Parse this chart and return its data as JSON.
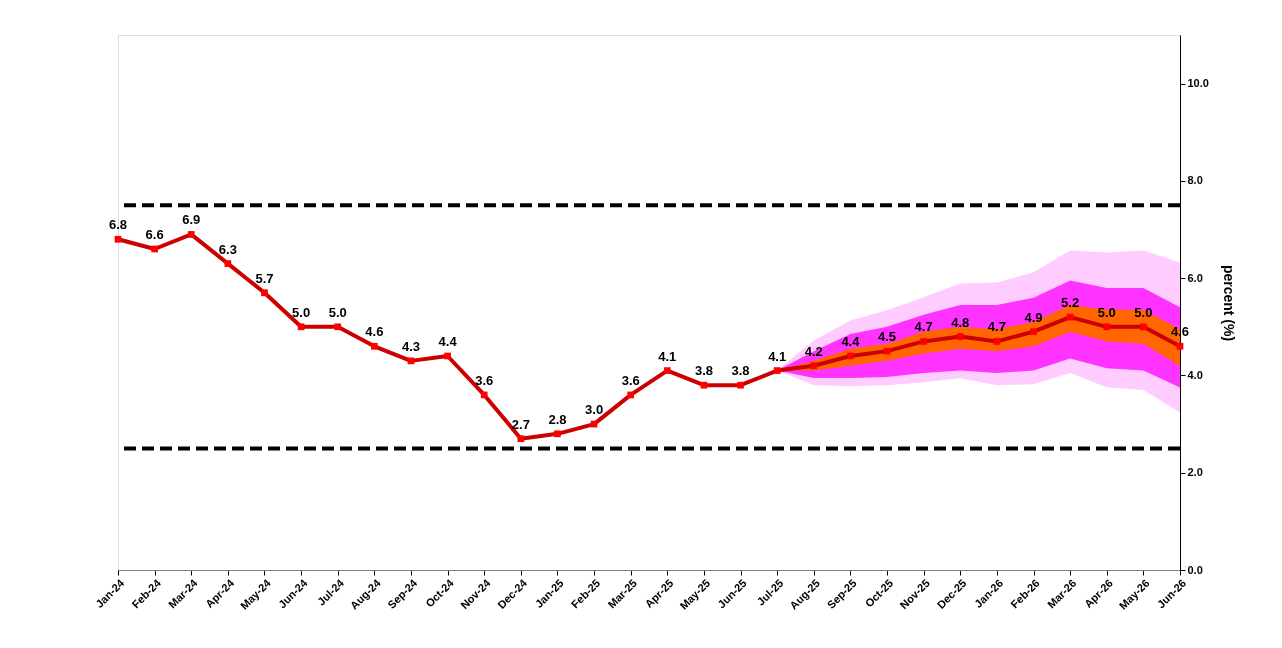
{
  "chart_data": {
    "type": "line",
    "categories": [
      "Jan-24",
      "Feb-24",
      "Mar-24",
      "Apr-24",
      "May-24",
      "Jun-24",
      "Jul-24",
      "Aug-24",
      "Sep-24",
      "Oct-24",
      "Nov-24",
      "Dec-24",
      "Jan-25",
      "Feb-25",
      "Mar-25",
      "Apr-25",
      "May-25",
      "Jun-25",
      "Jul-25",
      "Aug-25",
      "Sep-25",
      "Oct-25",
      "Nov-25",
      "Dec-25",
      "Jan-26",
      "Feb-26",
      "Mar-26",
      "Apr-26",
      "May-26",
      "Jun-26"
    ],
    "ylabel": "percent (%)",
    "ylim": [
      0,
      11
    ],
    "yticks": [
      {
        "value": 0,
        "label": "0.0"
      },
      {
        "value": 2,
        "label": "2.0"
      },
      {
        "value": 4,
        "label": "4.0"
      },
      {
        "value": 6,
        "label": "6.0"
      },
      {
        "value": 8,
        "label": "8.0"
      },
      {
        "value": 10,
        "label": "10.0"
      }
    ],
    "series": [
      {
        "color": "#cc0000",
        "values": [
          6.8,
          6.6,
          6.9,
          6.3,
          5.7,
          5.0,
          5.0,
          4.6,
          4.3,
          4.4,
          3.6,
          2.7,
          2.8,
          3.0,
          3.6,
          4.1,
          3.8,
          3.8,
          4.1,
          4.2,
          4.4,
          4.5,
          4.7,
          4.8,
          4.7,
          4.9,
          5.2,
          5.0,
          5.0,
          4.6
        ],
        "value_labels": [
          "6.8",
          "6.6",
          "6.9",
          "6.3",
          "5.7",
          "5.0",
          "5.0",
          "4.6",
          "4.3",
          "4.4",
          "3.6",
          "2.7",
          "2.8",
          "3.0",
          "3.6",
          "4.1",
          "3.8",
          "3.8",
          "4.1",
          "4.2",
          "4.4",
          "4.5",
          "4.7",
          "4.8",
          "4.7",
          "4.9",
          "5.2",
          "5.0",
          "5.0",
          "4.6"
        ]
      },
      {
        "color": "#ffccff",
        "values": [
          null,
          null,
          null,
          null,
          null,
          null,
          null,
          null,
          null,
          null,
          null,
          null,
          null,
          null,
          null,
          null,
          null,
          null,
          null,
          null,
          null,
          null,
          null,
          null,
          null,
          null,
          null,
          null,
          null,
          null
        ],
        "lower": [
          null,
          null,
          null,
          null,
          null,
          null,
          null,
          null,
          null,
          null,
          null,
          null,
          null,
          null,
          null,
          null,
          null,
          null,
          4.1,
          3.8,
          3.78,
          3.8,
          3.86,
          3.94,
          3.8,
          3.82,
          4.05,
          3.76,
          3.7,
          3.24
        ],
        "upper": [
          null,
          null,
          null,
          null,
          null,
          null,
          null,
          null,
          null,
          null,
          null,
          null,
          null,
          null,
          null,
          null,
          null,
          null,
          4.1,
          4.72,
          5.13,
          5.34,
          5.61,
          5.89,
          5.91,
          6.12,
          6.57,
          6.53,
          6.57,
          6.32
        ]
      },
      {
        "color": "#ff33ff",
        "values": [
          null,
          null,
          null,
          null,
          null,
          null,
          null,
          null,
          null,
          null,
          null,
          null,
          null,
          null,
          null,
          null,
          null,
          null,
          null,
          null,
          null,
          null,
          null,
          null,
          null,
          null,
          null,
          null,
          null,
          null
        ],
        "lower": [
          null,
          null,
          null,
          null,
          null,
          null,
          null,
          null,
          null,
          null,
          null,
          null,
          null,
          null,
          null,
          null,
          null,
          null,
          4.1,
          3.95,
          3.95,
          3.97,
          4.05,
          4.1,
          4.05,
          4.1,
          4.35,
          4.15,
          4.1,
          3.75
        ],
        "upper": [
          null,
          null,
          null,
          null,
          null,
          null,
          null,
          null,
          null,
          null,
          null,
          null,
          null,
          null,
          null,
          null,
          null,
          null,
          4.1,
          4.5,
          4.85,
          5.0,
          5.25,
          5.45,
          5.45,
          5.6,
          5.95,
          5.8,
          5.8,
          5.4
        ]
      },
      {
        "color": "#ff6600",
        "values": [
          null,
          null,
          null,
          null,
          null,
          null,
          null,
          null,
          null,
          null,
          null,
          null,
          null,
          null,
          null,
          null,
          null,
          null,
          null,
          null,
          null,
          null,
          null,
          null,
          null,
          null,
          null,
          null,
          null,
          null
        ],
        "lower": [
          null,
          null,
          null,
          null,
          null,
          null,
          null,
          null,
          null,
          null,
          null,
          null,
          null,
          null,
          null,
          null,
          null,
          null,
          4.1,
          4.1,
          4.2,
          4.3,
          4.45,
          4.55,
          4.5,
          4.6,
          4.9,
          4.7,
          4.65,
          4.2
        ],
        "upper": [
          null,
          null,
          null,
          null,
          null,
          null,
          null,
          null,
          null,
          null,
          null,
          null,
          null,
          null,
          null,
          null,
          null,
          null,
          4.1,
          4.3,
          4.55,
          4.65,
          4.9,
          5.0,
          4.95,
          5.1,
          5.45,
          5.35,
          5.35,
          4.95
        ]
      }
    ],
    "marker": "square",
    "line_style": "solid",
    "grid": false,
    "ref_lines": [
      {
        "axis": "y",
        "value": 7.5,
        "color": "#000000",
        "line_style": "dashed"
      },
      {
        "axis": "y",
        "value": 2.5,
        "color": "#000000",
        "line_style": "dashed"
      }
    ]
  }
}
